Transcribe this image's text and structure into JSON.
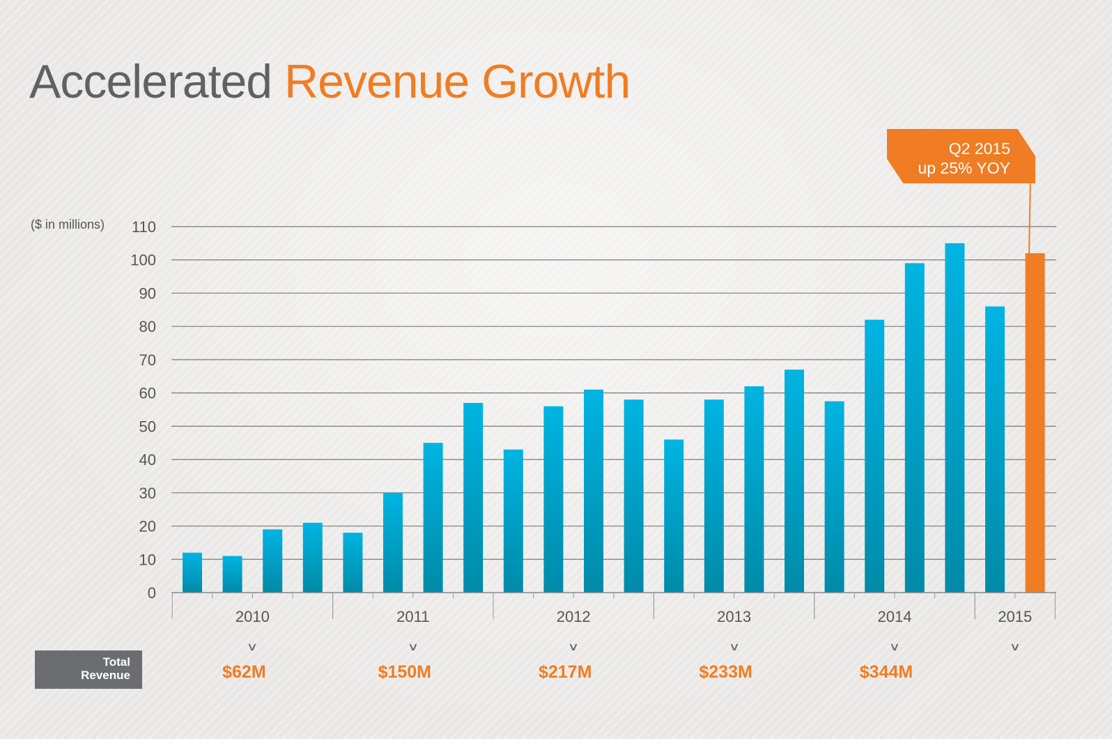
{
  "title": {
    "part1": "Accelerated",
    "part2": "Revenue Growth"
  },
  "units_label": "($ in millions)",
  "callout": {
    "line1": "Q2 2015",
    "line2": "up 25% YOY"
  },
  "total_revenue_label": {
    "line1": "Total",
    "line2": "Revenue"
  },
  "annual_totals": [
    "$62M",
    "$150M",
    "$217M",
    "$233M",
    "$344M"
  ],
  "colors": {
    "bar": "#00b2e0",
    "highlight": "#f07c23",
    "grid": "#7a7a7a",
    "title_gray": "#5f6163"
  },
  "chart_data": {
    "type": "bar",
    "title": "Accelerated Revenue Growth",
    "ylabel": "($ in millions)",
    "ylim": [
      0,
      110
    ],
    "yticks": [
      0,
      10,
      20,
      30,
      40,
      50,
      60,
      70,
      80,
      90,
      100,
      110
    ],
    "year_labels": [
      "2010",
      "2011",
      "2012",
      "2013",
      "2014",
      "2015"
    ],
    "quarters_per_year": [
      4,
      4,
      4,
      4,
      4,
      2
    ],
    "values": [
      12,
      11,
      19,
      21,
      18,
      30,
      45,
      57,
      43,
      56,
      61,
      58,
      46,
      58,
      62,
      67,
      57.5,
      82,
      99,
      105,
      86,
      102
    ],
    "highlight_index": 21
  }
}
